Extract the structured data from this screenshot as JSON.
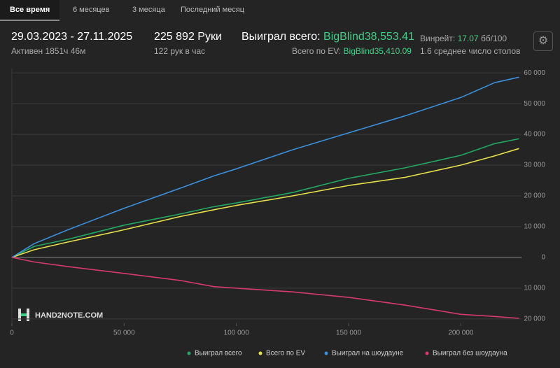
{
  "tabs": [
    "Все время",
    "6 месяцев",
    "3 месяца",
    "Последний месяц"
  ],
  "header": {
    "period": "29.03.2023 - 27.11.2025",
    "active": "Активен 1851ч 46м",
    "hands": "225 892 Руки",
    "rate": "122 рук в час",
    "won_label": "Выиграл всего:",
    "won_value": "BigBlind38,553.41",
    "ev_label": "Всего по EV:",
    "ev_value": "BigBlind35,410.09",
    "winrate_label": "Винрейт:",
    "winrate_value": "17.07",
    "winrate_unit": "бб/100",
    "tables": "1.6 среднее число столов"
  },
  "watermark": "HAND2NOTE.COM",
  "chart_data": {
    "type": "line",
    "x": [
      0,
      10000,
      25000,
      50000,
      75000,
      90000,
      100000,
      125000,
      150000,
      175000,
      200000,
      215000,
      225892
    ],
    "series": [
      {
        "name": "Выиграл всего",
        "color": "#22a862",
        "values": [
          0,
          3600,
          5900,
          10500,
          14100,
          16500,
          17700,
          21100,
          25700,
          29100,
          33200,
          37000,
          38553
        ]
      },
      {
        "name": "Всего по EV",
        "color": "#e6e04a",
        "values": [
          0,
          2500,
          5000,
          9000,
          13300,
          15500,
          16900,
          20000,
          23400,
          26000,
          30000,
          33000,
          35410
        ]
      },
      {
        "name": "Выиграл на шоудауне",
        "color": "#3b8fdb",
        "values": [
          0,
          4500,
          9000,
          16000,
          22500,
          26500,
          28800,
          35000,
          40500,
          46000,
          52000,
          56800,
          58600
        ]
      },
      {
        "name": "Выиграл без шоудауна",
        "color": "#d63a6c",
        "values": [
          0,
          -1500,
          -3000,
          -5200,
          -7500,
          -9500,
          -10000,
          -11200,
          -13000,
          -15500,
          -18500,
          -19200,
          -19800
        ]
      }
    ],
    "xlim": [
      0,
      227000
    ],
    "ylim": [
      -21400,
      61400
    ],
    "xticks": [
      0,
      {
        "value": 50000,
        "label": "50 000"
      },
      {
        "value": 100000,
        "label": "100 000"
      },
      {
        "value": 150000,
        "label": "150 000"
      },
      {
        "value": 200000,
        "label": "200 000"
      }
    ],
    "yticks": [
      {
        "value": -20000,
        "label": "20 000"
      },
      {
        "value": -10000,
        "label": "10 000"
      },
      0,
      {
        "value": 10000,
        "label": "10 000"
      },
      {
        "value": 20000,
        "label": "20 000"
      },
      {
        "value": 30000,
        "label": "30 000"
      },
      {
        "value": 40000,
        "label": "40 000"
      },
      {
        "value": 50000,
        "label": "50 000"
      },
      {
        "value": 60000,
        "label": "60 000"
      }
    ],
    "grid": true,
    "legend": "bottom"
  }
}
